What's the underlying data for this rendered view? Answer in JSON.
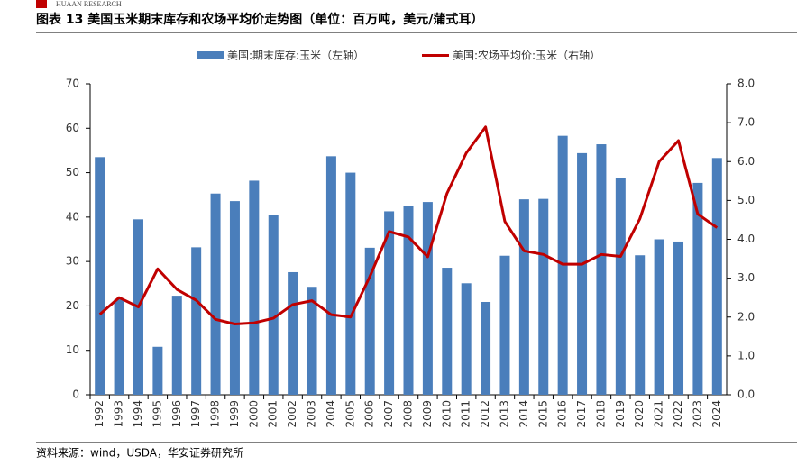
{
  "header": {
    "logo": "HUAAN RESEARCH"
  },
  "chart_data": {
    "type": "bar-line",
    "title": "图表 13 美国玉米期末库存和农场平均价走势图（单位：百万吨，美元/蒲式耳）",
    "categories": [
      "1992",
      "1993",
      "1994",
      "1995",
      "1996",
      "1997",
      "1998",
      "1999",
      "2000",
      "2001",
      "2002",
      "2003",
      "2004",
      "2005",
      "2006",
      "2007",
      "2008",
      "2009",
      "2010",
      "2011",
      "2012",
      "2013",
      "2014",
      "2015",
      "2016",
      "2017",
      "2018",
      "2019",
      "2020",
      "2021",
      "2022",
      "2023",
      "2024"
    ],
    "series": [
      {
        "name": "美国:期末库存:玉米（左轴）",
        "type": "bar",
        "color": "#4a7ebb",
        "axis": "y",
        "values": [
          53.5,
          21.5,
          39.5,
          10.8,
          22.3,
          33.2,
          45.3,
          43.6,
          48.2,
          40.5,
          27.6,
          24.3,
          53.7,
          50,
          33.1,
          41.3,
          42.5,
          43.4,
          28.6,
          25.1,
          20.9,
          31.3,
          44,
          44.1,
          58.3,
          54.4,
          56.4,
          48.8,
          31.4,
          35,
          34.5,
          47.7,
          53.3
        ]
      },
      {
        "name": "美国:农场平均价:玉米（右轴）",
        "type": "line",
        "color": "#c00000",
        "axis": "y2",
        "values": [
          2.07,
          2.5,
          2.26,
          3.24,
          2.71,
          2.43,
          1.94,
          1.82,
          1.85,
          1.97,
          2.32,
          2.42,
          2.06,
          2.0,
          3.04,
          4.2,
          4.06,
          3.55,
          5.18,
          6.22,
          6.89,
          4.46,
          3.7,
          3.61,
          3.36,
          3.36,
          3.61,
          3.56,
          4.53,
          6.0,
          6.54,
          4.65,
          4.3
        ]
      }
    ],
    "ylim": [
      0,
      70
    ],
    "yticks": [
      0,
      10,
      20,
      30,
      40,
      50,
      60,
      70
    ],
    "y2lim": [
      0,
      8
    ],
    "y2ticks": [
      {
        "value": 0,
        "label": "0.0"
      },
      {
        "value": 1,
        "label": "1.0"
      },
      {
        "value": 2,
        "label": "2.0"
      },
      {
        "value": 3,
        "label": "3.0"
      },
      {
        "value": 4,
        "label": "4.0"
      },
      {
        "value": 5,
        "label": "5.0"
      },
      {
        "value": 6,
        "label": "6.0"
      },
      {
        "value": 7,
        "label": "7.0"
      },
      {
        "value": 8,
        "label": "8.0"
      }
    ],
    "legend": "top",
    "source": "资料来源：wind，USDA，华安证券研究所"
  }
}
